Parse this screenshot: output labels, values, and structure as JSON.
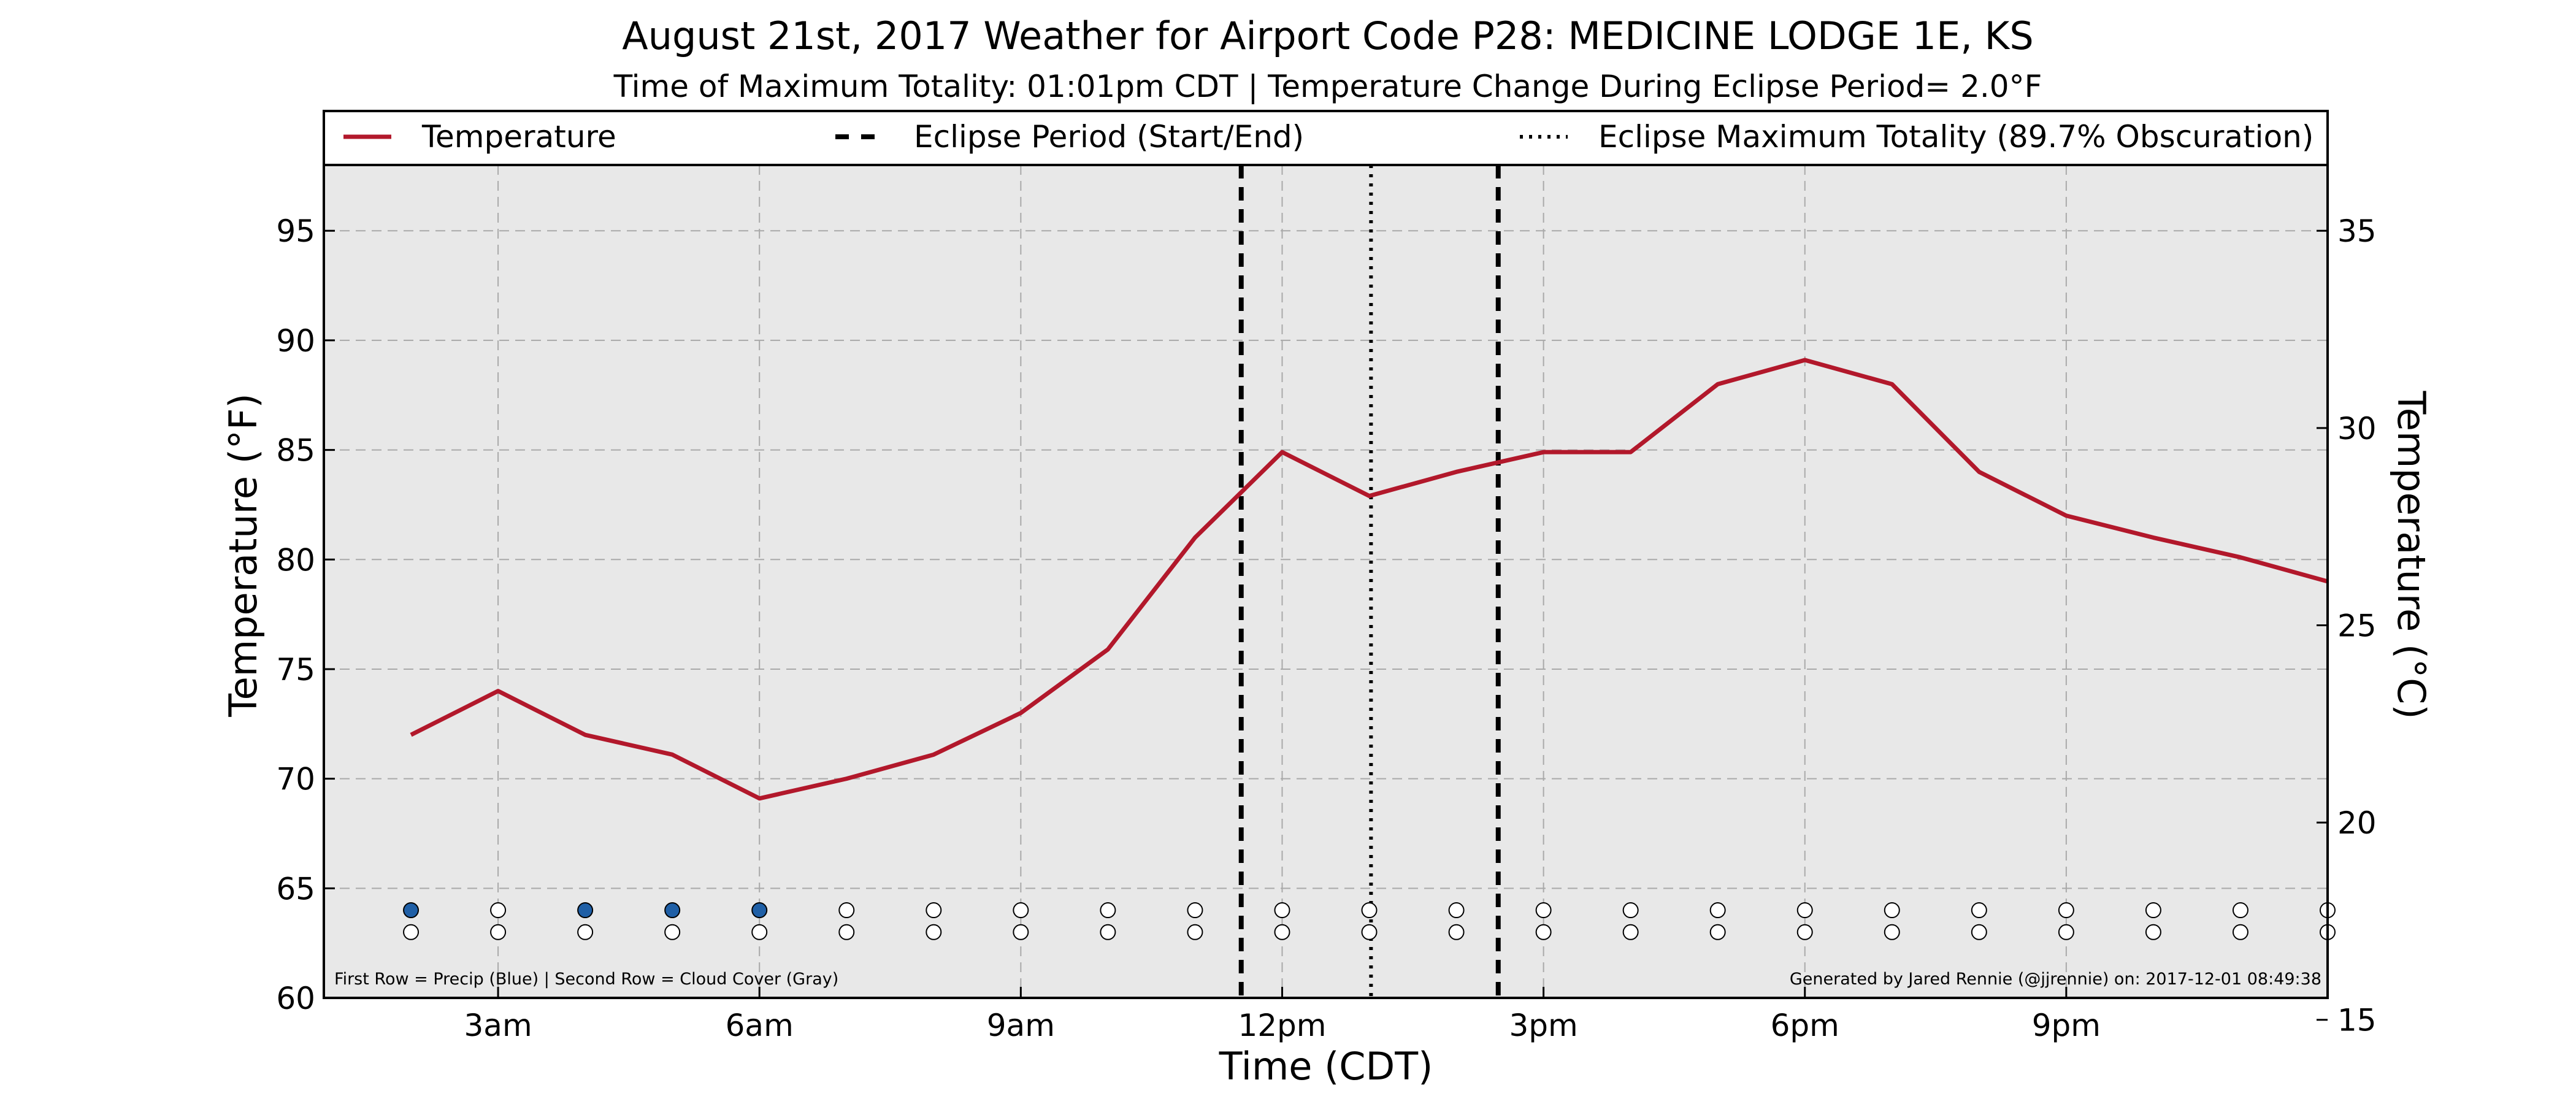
{
  "chart_data": {
    "type": "line",
    "title": "August 21st, 2017 Weather for Airport Code P28: MEDICINE LODGE 1E, KS",
    "subtitle": "Time of Maximum Totality: 01:01pm CDT | Temperature Change During Eclipse Period= 2.0°F",
    "xlabel": "Time (CDT)",
    "ylabel": "Temperature (°F)",
    "ylabel_right": "Temperature (°C)",
    "x_unit": "hour of day (CDT)",
    "xlim": [
      1,
      24
    ],
    "ylim": [
      60,
      98
    ],
    "ylim_right": [
      15.56,
      36.67
    ],
    "x_ticks": [
      {
        "x": 3,
        "label": "3am"
      },
      {
        "x": 6,
        "label": "6am"
      },
      {
        "x": 9,
        "label": "9am"
      },
      {
        "x": 12,
        "label": "12pm"
      },
      {
        "x": 15,
        "label": "3pm"
      },
      {
        "x": 18,
        "label": "6pm"
      },
      {
        "x": 21,
        "label": "9pm"
      }
    ],
    "y_ticks": [
      {
        "y": 60,
        "label": "60"
      },
      {
        "y": 65,
        "label": "65"
      },
      {
        "y": 70,
        "label": "70"
      },
      {
        "y": 75,
        "label": "75"
      },
      {
        "y": 80,
        "label": "80"
      },
      {
        "y": 85,
        "label": "85"
      },
      {
        "y": 90,
        "label": "90"
      },
      {
        "y": 95,
        "label": "95"
      }
    ],
    "y_ticks_right": [
      {
        "c": 15,
        "label": "15"
      },
      {
        "c": 20,
        "label": "20"
      },
      {
        "c": 25,
        "label": "25"
      },
      {
        "c": 30,
        "label": "30"
      },
      {
        "c": 35,
        "label": "35"
      }
    ],
    "grid": true,
    "legend_placement": "top, full width",
    "legend": [
      {
        "label": "Temperature",
        "style": "solid",
        "color": "#b2182b"
      },
      {
        "label": "Eclipse Period (Start/End)",
        "style": "dashed",
        "color": "#000000"
      },
      {
        "label": "Eclipse Maximum Totality (89.7% Obscuration)",
        "style": "dotted",
        "color": "#000000"
      }
    ],
    "series": [
      {
        "name": "Temperature",
        "color": "#b2182b",
        "x": [
          2,
          3,
          4,
          5,
          6,
          7,
          8,
          9,
          10,
          11,
          12,
          13,
          14,
          15,
          16,
          17,
          18,
          19,
          20,
          21,
          22,
          23,
          24
        ],
        "values": [
          72,
          74,
          72,
          71.1,
          69.1,
          70,
          71.1,
          73,
          75.9,
          81,
          84.9,
          82.9,
          84,
          84.9,
          84.9,
          88,
          89.1,
          88,
          84,
          82,
          81,
          80.1,
          79
        ]
      }
    ],
    "eclipse_lines": [
      {
        "x": 11.53,
        "style": "dashed",
        "label": "Eclipse start"
      },
      {
        "x": 13.02,
        "style": "dotted",
        "label": "Maximum totality"
      },
      {
        "x": 14.48,
        "style": "dashed",
        "label": "Eclipse end"
      }
    ],
    "indicator_rows": {
      "x": [
        2,
        3,
        4,
        5,
        6,
        7,
        8,
        9,
        10,
        11,
        12,
        13,
        14,
        15,
        16,
        17,
        18,
        19,
        20,
        21,
        22,
        23,
        24
      ],
      "precip_y": 64,
      "cloud_y": 63,
      "precip": [
        1,
        0,
        1,
        1,
        1,
        0,
        0,
        0,
        0,
        0,
        0,
        0,
        0,
        0,
        0,
        0,
        0,
        0,
        0,
        0,
        0,
        0,
        0
      ],
      "cloud": [
        0,
        0,
        0,
        0,
        0,
        0,
        0,
        0,
        0,
        0,
        0,
        0,
        0,
        0,
        0,
        0,
        0,
        0,
        0,
        0,
        0,
        0,
        0
      ],
      "precip_color": "#1f5fa6",
      "empty_color": "#ffffff"
    },
    "footnote_left": "First Row = Precip (Blue) | Second Row = Cloud Cover (Gray)",
    "footnote_right": "Generated by Jared Rennie (@jjrennie) on: 2017-12-01 08:49:38",
    "plot_background": "#e8e8e8"
  }
}
